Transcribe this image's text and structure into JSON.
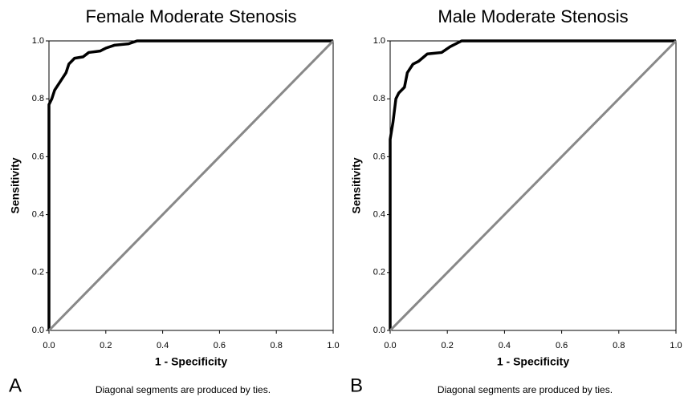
{
  "chart_data": [
    {
      "type": "line",
      "title": "Female Moderate Stenosis",
      "xlabel": "1 - Specificity",
      "ylabel": "Sensitivity",
      "panel_label": "A",
      "note": "Diagonal segments are produced by ties.",
      "xlim": [
        0,
        1
      ],
      "ylim": [
        0,
        1
      ],
      "xticks": [
        {
          "value": 0,
          "label": "0.0"
        },
        0.2,
        0.4,
        0.6,
        0.8,
        {
          "value": 1,
          "label": "1.0"
        }
      ],
      "yticks": [
        {
          "value": 0,
          "label": "0.0"
        },
        0.2,
        0.4,
        0.6,
        0.8,
        {
          "value": 1,
          "label": "1.0"
        }
      ],
      "series": [
        {
          "color": "#000000",
          "x": [
            0,
            0,
            0.01,
            0.02,
            0.04,
            0.06,
            0.07,
            0.09,
            0.12,
            0.14,
            0.18,
            0.2,
            0.23,
            0.28,
            0.31,
            1
          ],
          "values": [
            0,
            0.78,
            0.8,
            0.83,
            0.86,
            0.89,
            0.92,
            0.94,
            0.945,
            0.96,
            0.965,
            0.975,
            0.985,
            0.99,
            1,
            1
          ]
        },
        {
          "color": "#888888",
          "x": [
            0,
            1
          ],
          "values": [
            0,
            1
          ]
        }
      ]
    },
    {
      "type": "line",
      "title": "Male Moderate Stenosis",
      "xlabel": "1 - Specificity",
      "ylabel": "Sensitivity",
      "panel_label": "B",
      "note": "Diagonal segments are produced by ties.",
      "xlim": [
        0,
        1
      ],
      "ylim": [
        0,
        1
      ],
      "xticks": [
        {
          "value": 0,
          "label": "0.0"
        },
        0.2,
        0.4,
        0.6,
        0.8,
        {
          "value": 1,
          "label": "1.0"
        }
      ],
      "yticks": [
        {
          "value": 0,
          "label": "0.0"
        },
        0.2,
        0.4,
        0.6,
        0.8,
        {
          "value": 1,
          "label": "1.0"
        }
      ],
      "series": [
        {
          "color": "#000000",
          "x": [
            0,
            0,
            0.01,
            0.02,
            0.03,
            0.05,
            0.06,
            0.08,
            0.1,
            0.13,
            0.18,
            0.21,
            0.25,
            1
          ],
          "values": [
            0,
            0.66,
            0.72,
            0.8,
            0.82,
            0.84,
            0.89,
            0.92,
            0.93,
            0.955,
            0.96,
            0.98,
            1,
            1
          ]
        },
        {
          "color": "#888888",
          "x": [
            0,
            1
          ],
          "values": [
            0,
            1
          ]
        }
      ]
    }
  ]
}
